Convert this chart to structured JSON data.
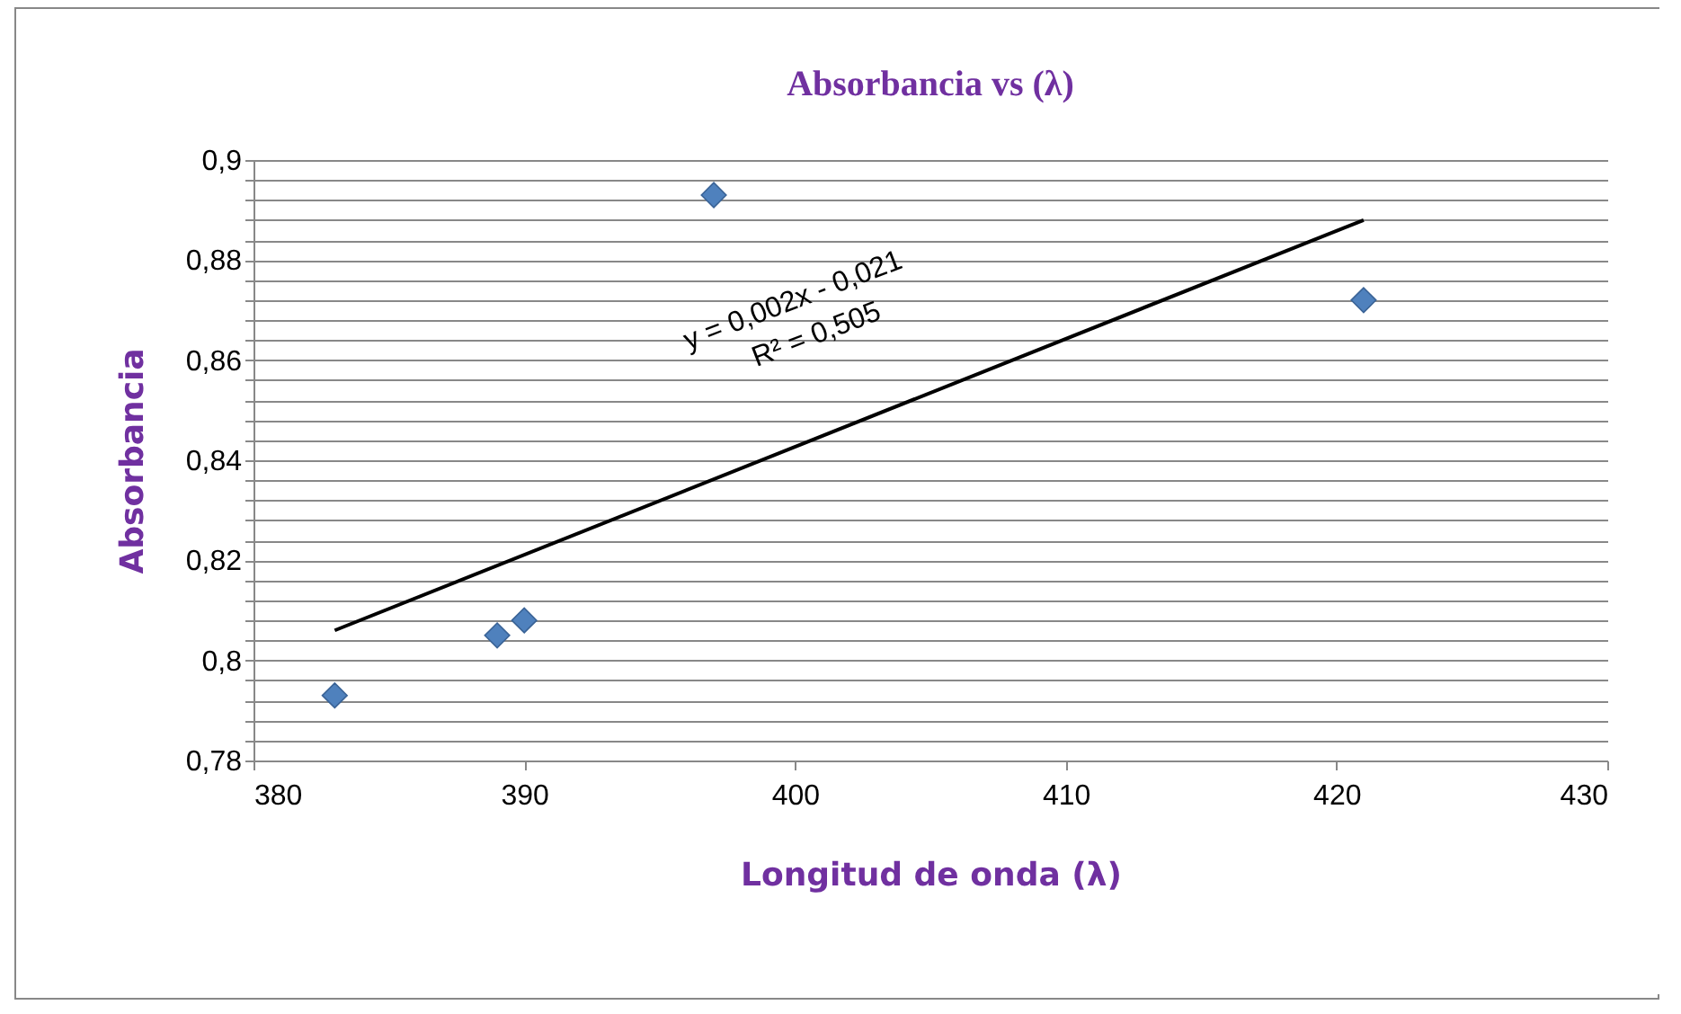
{
  "chart_data": {
    "type": "scatter",
    "title": "Absorbancia vs (λ)",
    "xlabel": "Longitud de onda (λ)",
    "ylabel": "Absorbancia",
    "series": [
      {
        "marker": "diamond",
        "color": "#4f81bd",
        "x": [
          383,
          389,
          390,
          397,
          421
        ],
        "values": [
          0.793,
          0.805,
          0.808,
          0.893,
          0.872
        ]
      },
      {
        "type": "line",
        "color": "#000000",
        "x": [
          383,
          421
        ],
        "values": [
          0.806,
          0.888
        ]
      }
    ],
    "xlim": [
      380,
      430
    ],
    "xticks": [
      380,
      390,
      400,
      410,
      420,
      430
    ],
    "ylim": [
      0.78,
      0.9
    ],
    "yticks": [
      {
        "value": 0.78,
        "label": "0,78"
      },
      {
        "value": 0.784,
        "label": null
      },
      {
        "value": 0.788,
        "label": null
      },
      {
        "value": 0.792,
        "label": null
      },
      {
        "value": 0.796,
        "label": null
      },
      {
        "value": 0.8,
        "label": "0,8"
      },
      {
        "value": 0.804,
        "label": null
      },
      {
        "value": 0.808,
        "label": null
      },
      {
        "value": 0.812,
        "label": null
      },
      {
        "value": 0.816,
        "label": null
      },
      {
        "value": 0.82,
        "label": "0,82"
      },
      {
        "value": 0.824,
        "label": null
      },
      {
        "value": 0.828,
        "label": null
      },
      {
        "value": 0.832,
        "label": null
      },
      {
        "value": 0.836,
        "label": null
      },
      {
        "value": 0.84,
        "label": "0,84"
      },
      {
        "value": 0.844,
        "label": null
      },
      {
        "value": 0.848,
        "label": null
      },
      {
        "value": 0.852,
        "label": null
      },
      {
        "value": 0.856,
        "label": null
      },
      {
        "value": 0.86,
        "label": "0,86"
      },
      {
        "value": 0.864,
        "label": null
      },
      {
        "value": 0.868,
        "label": null
      },
      {
        "value": 0.872,
        "label": null
      },
      {
        "value": 0.876,
        "label": null
      },
      {
        "value": 0.88,
        "label": "0,88"
      },
      {
        "value": 0.884,
        "label": null
      },
      {
        "value": 0.888,
        "label": null
      },
      {
        "value": 0.892,
        "label": null
      },
      {
        "value": 0.896,
        "label": null
      },
      {
        "value": 0.9,
        "label": "0,9"
      }
    ],
    "grid": "y",
    "annotations": [
      "y = 0,002x - 0,021",
      "R² = 0,505"
    ]
  }
}
